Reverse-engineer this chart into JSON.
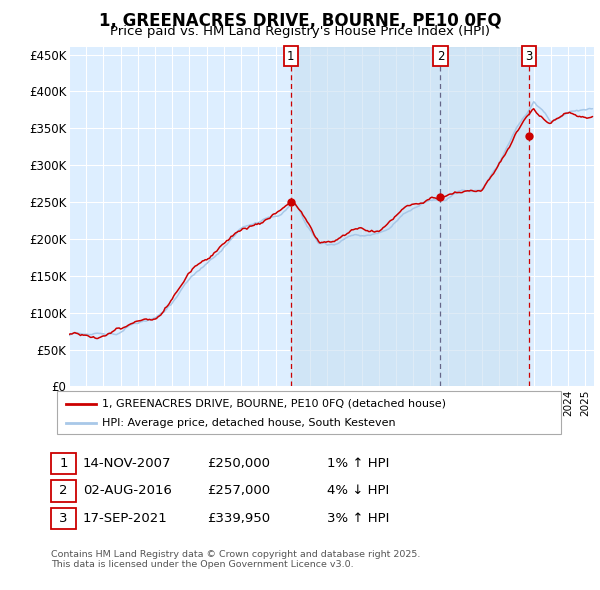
{
  "title": "1, GREENACRES DRIVE, BOURNE, PE10 0FQ",
  "subtitle": "Price paid vs. HM Land Registry's House Price Index (HPI)",
  "hpi_color": "#a8c8e8",
  "property_color": "#cc0000",
  "plot_bg_color": "#ddeeff",
  "sale1_date": 2007.878,
  "sale1_price": 250000,
  "sale2_date": 2016.581,
  "sale2_price": 257000,
  "sale3_date": 2021.714,
  "sale3_price": 339950,
  "sale2_vline_color": "#666688",
  "sale13_vline_color": "#cc0000",
  "legend_property": "1, GREENACRES DRIVE, BOURNE, PE10 0FQ (detached house)",
  "legend_hpi": "HPI: Average price, detached house, South Kesteven",
  "table_rows": [
    [
      "1",
      "14-NOV-2007",
      "£250,000",
      "1% ↑ HPI"
    ],
    [
      "2",
      "02-AUG-2016",
      "£257,000",
      "4% ↓ HPI"
    ],
    [
      "3",
      "17-SEP-2021",
      "£339,950",
      "3% ↑ HPI"
    ]
  ],
  "footnote": "Contains HM Land Registry data © Crown copyright and database right 2025.\nThis data is licensed under the Open Government Licence v3.0."
}
